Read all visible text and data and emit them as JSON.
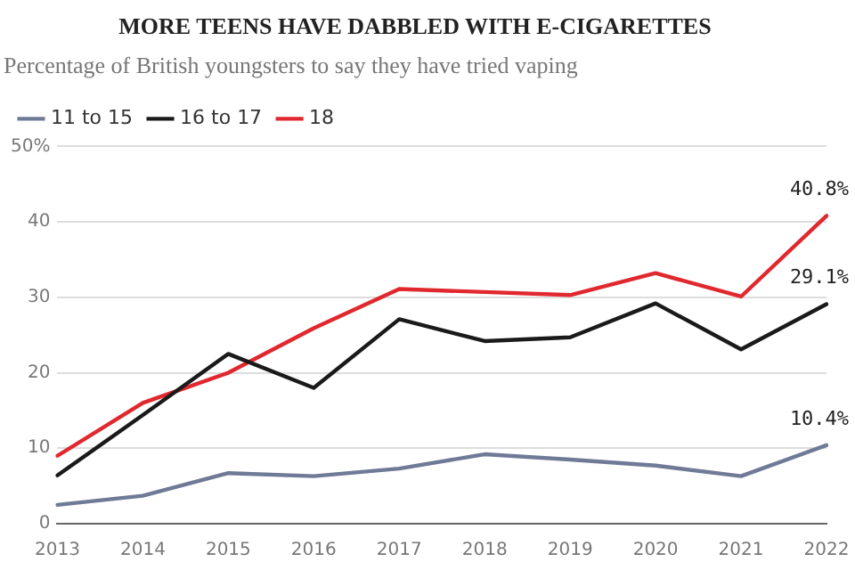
{
  "chart_data": {
    "type": "line",
    "title": "MORE TEENS HAVE DABBLED WITH E-CIGARETTES",
    "subtitle": "Percentage of British youngsters to say they have tried vaping",
    "categories": [
      "2013",
      "2014",
      "2015",
      "2016",
      "2017",
      "2018",
      "2019",
      "2020",
      "2021",
      "2022"
    ],
    "series": [
      {
        "name": "11 to 15",
        "color": "#6f7a96",
        "values": [
          2.5,
          3.7,
          6.7,
          6.3,
          7.3,
          9.2,
          8.5,
          7.7,
          6.3,
          10.4
        ],
        "value_labels": [
          null,
          null,
          null,
          null,
          null,
          null,
          null,
          null,
          null,
          "10.4%"
        ]
      },
      {
        "name": "16 to 17",
        "color": "#1a1a1a",
        "values": [
          6.4,
          14.4,
          22.5,
          18.0,
          27.1,
          24.2,
          24.7,
          29.2,
          23.1,
          29.1
        ],
        "value_labels": [
          null,
          null,
          null,
          null,
          null,
          null,
          null,
          null,
          null,
          "29.1%"
        ]
      },
      {
        "name": "18",
        "color": "#e0282e",
        "values": [
          9.0,
          16.0,
          20.0,
          25.9,
          31.1,
          30.7,
          30.3,
          33.2,
          30.1,
          40.8
        ],
        "value_labels": [
          null,
          null,
          null,
          null,
          null,
          null,
          null,
          null,
          null,
          "40.8%"
        ]
      }
    ],
    "ylim": [
      0,
      50
    ],
    "yticks": [
      0,
      10,
      20,
      30,
      40,
      {
        "value": 50,
        "label": "50%"
      }
    ],
    "grid": "y",
    "legend": "top left",
    "marker": "none",
    "line_style": "solid"
  }
}
